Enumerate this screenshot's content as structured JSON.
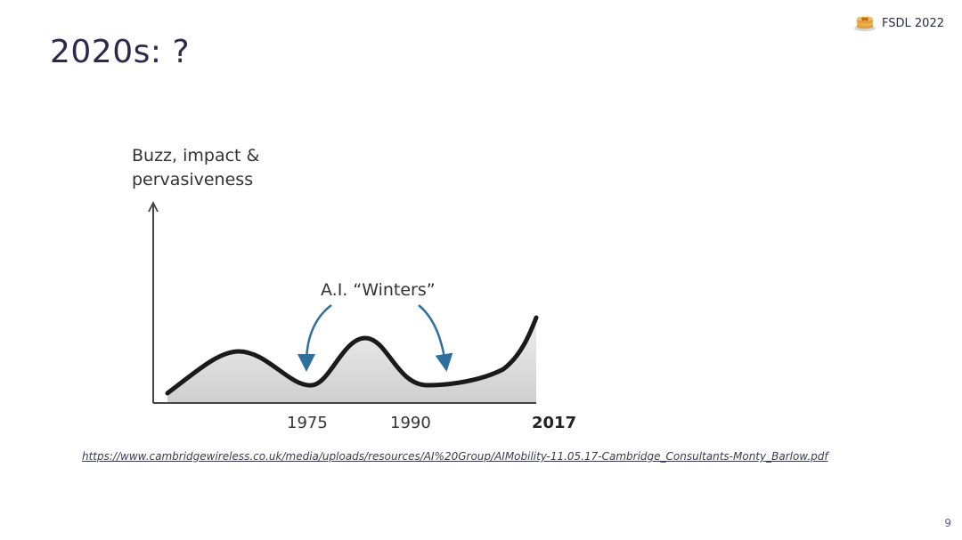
{
  "slide": {
    "title": "2020s: ?",
    "brand": {
      "label": "FSDL 2022",
      "icon": "pancakes-icon"
    },
    "figure": {
      "y_axis_label_line1": "Buzz, impact &",
      "y_axis_label_line2": "pervasiveness",
      "annotation": "A.I. “Winters”",
      "x_labels": [
        "1975",
        "1990",
        "2017"
      ]
    },
    "source_url": "https://www.cambridgewireless.co.uk/media/uploads/resources/AI%20Group/AIMobility-11.05.17-Cambridge_Consultants-Monty_Barlow.pdf",
    "page_number": "9"
  }
}
